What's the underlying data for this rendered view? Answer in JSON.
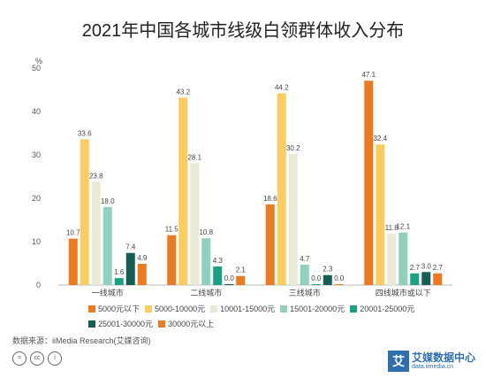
{
  "chart_data": {
    "type": "bar",
    "title": "2021年中国各城市线级白领群体收入分布",
    "ylabel": "%",
    "ylim": [
      0,
      50
    ],
    "yticks": [
      "0",
      "10",
      "20",
      "30",
      "40",
      "50"
    ],
    "grid": false,
    "legend_position": "bottom",
    "categories": [
      "一线城市",
      "二线城市",
      "三线城市",
      "四线城市或以下"
    ],
    "series": [
      {
        "name": "5000元以下",
        "color": "#ee7a1f",
        "values": [
          10.7,
          11.5,
          18.6,
          47.1
        ],
        "labels": [
          "10.7",
          "11.5",
          "18.6",
          "47.1"
        ]
      },
      {
        "name": "5000-10000元",
        "color": "#fbcd60",
        "values": [
          33.6,
          43.2,
          44.2,
          32.4
        ],
        "labels": [
          "33.6",
          "43.2",
          "44.2",
          "32.4"
        ]
      },
      {
        "name": "10001-15000元",
        "color": "#e9ead5",
        "values": [
          23.8,
          28.1,
          30.2,
          11.8
        ],
        "labels": [
          "23.8",
          "28.1",
          "30.2",
          "11.8"
        ]
      },
      {
        "name": "15001-20000元",
        "color": "#8fd1bd",
        "values": [
          18.0,
          10.8,
          4.7,
          12.1
        ],
        "labels": [
          "18.0",
          "10.8",
          "4.7",
          "12.1"
        ]
      },
      {
        "name": "20001-25000元",
        "color": "#1aa183",
        "values": [
          1.6,
          4.3,
          0.0,
          2.7
        ],
        "labels": [
          "1.6",
          "4.3",
          "0.0",
          "2.7"
        ]
      },
      {
        "name": "25001-30000元",
        "color": "#155e56",
        "values": [
          7.4,
          0.0,
          2.3,
          3.0
        ],
        "labels": [
          "7.4",
          "0.0",
          "2.3",
          "3.0"
        ]
      },
      {
        "name": "30000元以上",
        "color": "#ee7a1f",
        "values": [
          4.9,
          2.1,
          0.0,
          2.7
        ],
        "labels": [
          "4.9",
          "2.1",
          "0.0",
          "2.7"
        ]
      }
    ]
  },
  "source_note": "数据来源：iiMedia Research(艾媒咨询)",
  "license_icons": [
    "=",
    "cc",
    "i"
  ],
  "watermark": {
    "logo": "艾",
    "text_cn": "艾媒数据中心",
    "text_en": "data.iimedia.cn"
  }
}
